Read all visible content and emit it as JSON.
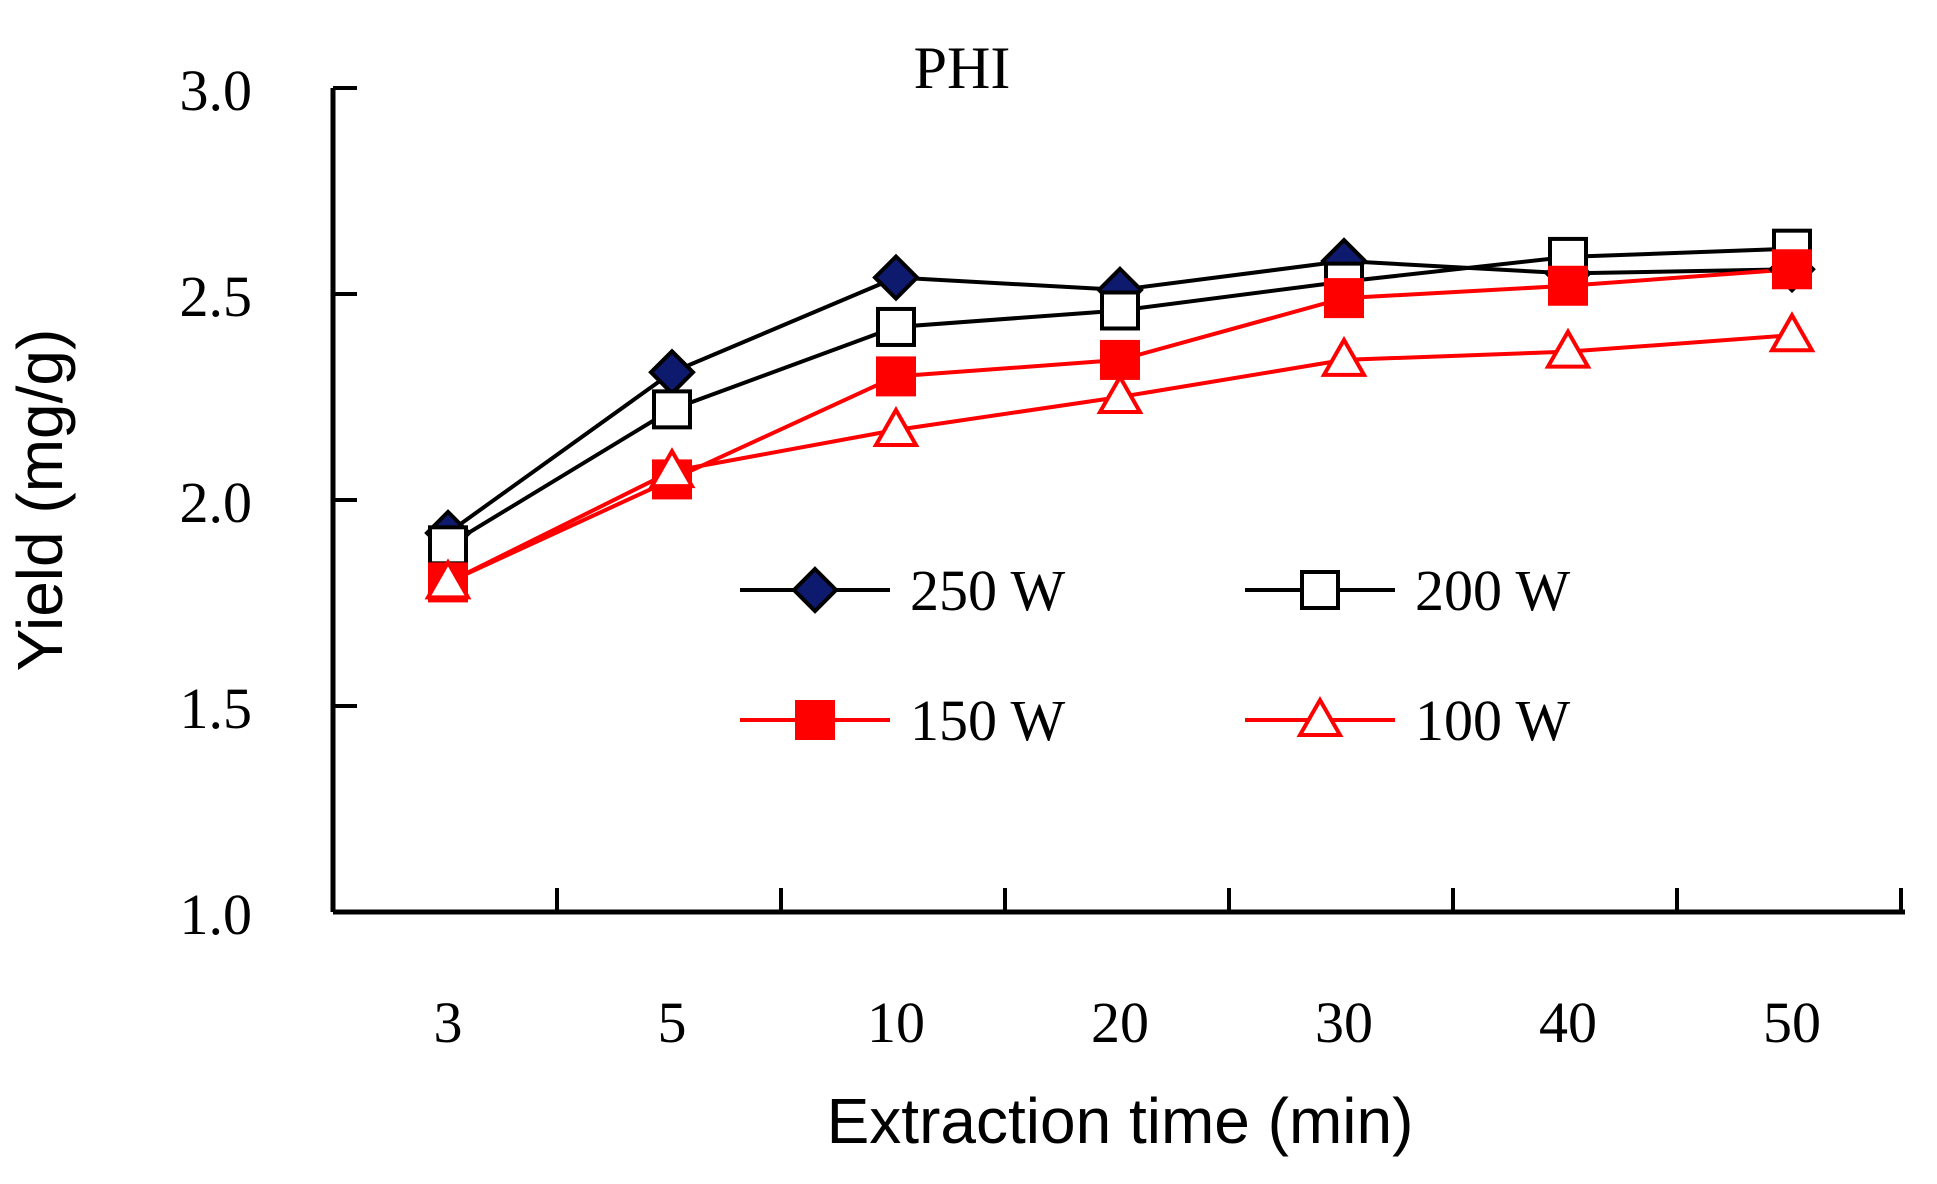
{
  "chart_data": {
    "type": "line",
    "title": "PHI",
    "xlabel": "Extraction time (min)",
    "ylabel": "Yield (mg/g)",
    "categories": [
      "3",
      "5",
      "10",
      "20",
      "30",
      "40",
      "50"
    ],
    "ylim": [
      1.0,
      3.0
    ],
    "yticks": [
      "1.0",
      "1.5",
      "2.0",
      "2.5",
      "3.0"
    ],
    "grid": false,
    "legend_position": "center-right",
    "series": [
      {
        "name": "250 W",
        "marker": "diamond",
        "line_color": "#000000",
        "marker_fill": "#0d1a6e",
        "marker_stroke": "#000000",
        "values": [
          1.92,
          2.31,
          2.54,
          2.51,
          2.58,
          2.55,
          2.56
        ]
      },
      {
        "name": "200 W",
        "marker": "square-open",
        "line_color": "#000000",
        "marker_fill": "#ffffff",
        "marker_stroke": "#000000",
        "values": [
          1.89,
          2.22,
          2.42,
          2.46,
          2.53,
          2.59,
          2.61
        ]
      },
      {
        "name": "150 W",
        "marker": "square-filled",
        "line_color": "#ff0000",
        "marker_fill": "#ff0000",
        "marker_stroke": "#ff0000",
        "values": [
          1.8,
          2.05,
          2.3,
          2.34,
          2.49,
          2.52,
          2.56
        ]
      },
      {
        "name": "100 W",
        "marker": "triangle-open",
        "line_color": "#ff0000",
        "marker_fill": "#ffffff",
        "marker_stroke": "#ff0000",
        "values": [
          1.8,
          2.07,
          2.17,
          2.25,
          2.34,
          2.36,
          2.4
        ]
      }
    ]
  }
}
